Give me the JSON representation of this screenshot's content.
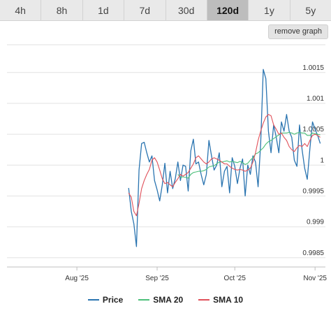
{
  "tabs": [
    {
      "label": "4h",
      "active": false
    },
    {
      "label": "8h",
      "active": false
    },
    {
      "label": "1d",
      "active": false
    },
    {
      "label": "7d",
      "active": false
    },
    {
      "label": "30d",
      "active": false
    },
    {
      "label": "120d",
      "active": true
    },
    {
      "label": "1y",
      "active": false
    },
    {
      "label": "5y",
      "active": false
    }
  ],
  "remove_graph_label": "remove graph",
  "chart_data": {
    "type": "line",
    "title": "",
    "xlabel": "",
    "ylabel": "",
    "grid": true,
    "legend_position": "bottom-center",
    "xlim": [
      "2025-07-05",
      "2025-11-05"
    ],
    "ylim": [
      0.99835,
      1.00195
    ],
    "x_ticks": [
      {
        "label": "Aug '25",
        "date": "2025-08-01"
      },
      {
        "label": "Sep '25",
        "date": "2025-09-01"
      },
      {
        "label": "Oct '25",
        "date": "2025-10-01"
      },
      {
        "label": "Nov '25",
        "date": "2025-11-01"
      }
    ],
    "y_ticks": [
      {
        "label": "0.9985",
        "value": 0.9985
      },
      {
        "label": "0.999",
        "value": 0.999
      },
      {
        "label": "0.9995",
        "value": 0.9995
      },
      {
        "label": "1",
        "value": 1.0
      },
      {
        "label": "1.0005",
        "value": 1.0005
      },
      {
        "label": "1.001",
        "value": 1.001
      },
      {
        "label": "1.0015",
        "value": 1.0015
      }
    ],
    "x": [
      "2025-08-21",
      "2025-08-22",
      "2025-08-23",
      "2025-08-24",
      "2025-08-25",
      "2025-08-26",
      "2025-08-27",
      "2025-08-28",
      "2025-08-29",
      "2025-08-30",
      "2025-08-31",
      "2025-09-01",
      "2025-09-02",
      "2025-09-03",
      "2025-09-04",
      "2025-09-05",
      "2025-09-06",
      "2025-09-07",
      "2025-09-08",
      "2025-09-09",
      "2025-09-10",
      "2025-09-11",
      "2025-09-12",
      "2025-09-13",
      "2025-09-14",
      "2025-09-15",
      "2025-09-16",
      "2025-09-17",
      "2025-09-18",
      "2025-09-19",
      "2025-09-20",
      "2025-09-21",
      "2025-09-22",
      "2025-09-23",
      "2025-09-24",
      "2025-09-25",
      "2025-09-26",
      "2025-09-27",
      "2025-09-28",
      "2025-09-29",
      "2025-09-30",
      "2025-10-01",
      "2025-10-02",
      "2025-10-03",
      "2025-10-04",
      "2025-10-05",
      "2025-10-06",
      "2025-10-07",
      "2025-10-08",
      "2025-10-09",
      "2025-10-10",
      "2025-10-11",
      "2025-10-12",
      "2025-10-13",
      "2025-10-14",
      "2025-10-15",
      "2025-10-16",
      "2025-10-17",
      "2025-10-18",
      "2025-10-19",
      "2025-10-20",
      "2025-10-21",
      "2025-10-22",
      "2025-10-23",
      "2025-10-24",
      "2025-10-25",
      "2025-10-26",
      "2025-10-27",
      "2025-10-28",
      "2025-10-29",
      "2025-10-30",
      "2025-10-31",
      "2025-11-01",
      "2025-11-02",
      "2025-11-03"
    ],
    "series": [
      {
        "name": "Price",
        "color": "#2a74b0",
        "values": [
          0.99963,
          0.99925,
          0.99905,
          0.99868,
          0.99992,
          1.00035,
          1.00037,
          1.0002,
          1.00005,
          1.00015,
          0.99975,
          0.9996,
          0.99942,
          0.99968,
          1.00003,
          0.99955,
          0.9999,
          0.99962,
          0.99978,
          1.00005,
          0.99975,
          1.0,
          0.99998,
          0.99958,
          1.00023,
          1.00042,
          1.00002,
          1.00005,
          0.99985,
          0.99968,
          0.99985,
          1.0004,
          1.00015,
          0.99992,
          1.0,
          1.0002,
          0.99965,
          0.9999,
          0.99998,
          0.99955,
          1.00012,
          0.99998,
          0.9997,
          0.99995,
          1.0001,
          0.9995,
          1.0,
          0.99985,
          1.00015,
          1.00005,
          0.99965,
          1.00035,
          1.00155,
          1.0014,
          1.00055,
          1.0002,
          1.00065,
          1.00045,
          1.0002,
          1.0007,
          1.00055,
          1.00082,
          1.00055,
          1.00045,
          1.00008,
          0.99998,
          1.00065,
          1.00025,
          0.99995,
          0.99977,
          1.00027,
          1.0007,
          1.00058,
          1.00048,
          1.00035
        ]
      },
      {
        "name": "SMA 20",
        "color": "#4cc07a",
        "values": [
          null,
          null,
          null,
          null,
          null,
          null,
          null,
          null,
          null,
          null,
          null,
          null,
          null,
          null,
          null,
          null,
          null,
          null,
          null,
          0.99985,
          0.9998,
          0.99981,
          0.9998,
          0.99979,
          0.99985,
          0.99988,
          0.99989,
          0.9999,
          0.9999,
          0.99991,
          0.99993,
          0.99997,
          0.99998,
          0.99999,
          1.00002,
          1.00005,
          1.00005,
          1.00006,
          1.00007,
          1.00005,
          1.00006,
          1.00005,
          1.00004,
          1.00006,
          1.00004,
          1.00001,
          1.00003,
          1.00008,
          1.00012,
          1.00018,
          1.0002,
          1.00024,
          1.00028,
          1.00034,
          1.00038,
          1.0004,
          1.00043,
          1.00046,
          1.00049,
          1.00052,
          1.00052,
          1.00052,
          1.00053,
          1.00052,
          1.0005,
          1.00052,
          1.00053,
          1.00052,
          1.00052,
          1.00048,
          1.00048,
          1.00052,
          1.00051,
          1.0005,
          1.00049
        ]
      },
      {
        "name": "SMA 10",
        "color": "#e0505a",
        "values": [
          0.99955,
          0.99948,
          0.99925,
          0.99918,
          0.99938,
          0.99962,
          0.99975,
          0.99985,
          0.99993,
          1.00008,
          1.00012,
          1.00005,
          0.99992,
          0.99978,
          0.9997,
          0.99972,
          0.99968,
          0.99965,
          0.99972,
          0.99978,
          0.99985,
          0.99982,
          0.99985,
          0.99988,
          0.99995,
          1.00002,
          1.00012,
          1.00015,
          1.0001,
          1.00005,
          1.00002,
          1.00005,
          1.0001,
          1.00012,
          1.0001,
          1.00008,
          1.00005,
          1.00002,
          1.00002,
          0.99998,
          0.99995,
          0.99993,
          0.99992,
          0.99993,
          0.99992,
          0.9999,
          0.99992,
          0.99995,
          1.00005,
          1.0002,
          1.0004,
          1.00055,
          1.00068,
          1.00078,
          1.00082,
          1.0008,
          1.00065,
          1.00058,
          1.0005,
          1.00052,
          1.00045,
          1.0004,
          1.0003,
          1.00025,
          1.00022,
          1.00028,
          1.00032,
          1.0003,
          1.00035,
          1.0003,
          1.0004,
          1.00048,
          1.0005,
          1.00048,
          1.00045
        ]
      }
    ]
  }
}
